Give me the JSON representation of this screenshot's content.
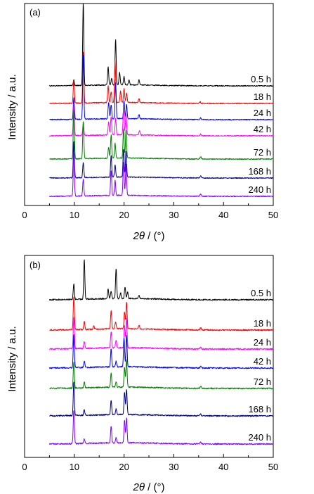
{
  "chart_data": [
    {
      "type": "line",
      "panel_label": "(a)",
      "xlabel_symbol": "2θ",
      "xlabel_unit": " / (°)",
      "ylabel": "Intensity / a.u.",
      "xlim": [
        0,
        50
      ],
      "x_ticks": [
        0,
        10,
        20,
        30,
        40,
        50
      ],
      "y_ticks_shown": false,
      "grid": false,
      "legend": "none",
      "series": [
        {
          "name": "0.5 h",
          "color": "#000000",
          "peaks": [
            [
              9.9,
              0.07
            ],
            [
              11.8,
              1.0
            ],
            [
              16.8,
              0.22
            ],
            [
              17.5,
              0.08
            ],
            [
              18.3,
              0.55
            ],
            [
              19.1,
              0.15
            ],
            [
              20.0,
              0.1
            ],
            [
              21.0,
              0.06
            ],
            [
              23.0,
              0.06
            ]
          ]
        },
        {
          "name": "18 h",
          "color": "#ff0000",
          "peaks": [
            [
              9.9,
              0.28
            ],
            [
              11.8,
              0.62
            ],
            [
              16.8,
              0.2
            ],
            [
              17.4,
              0.13
            ],
            [
              18.2,
              0.5
            ],
            [
              19.3,
              0.14
            ],
            [
              20.0,
              0.17
            ],
            [
              20.5,
              0.12
            ],
            [
              23.0,
              0.05
            ],
            [
              35.3,
              0.02
            ]
          ]
        },
        {
          "name": "24 h",
          "color": "#0000ff",
          "peaks": [
            [
              9.9,
              0.26
            ],
            [
              11.8,
              0.78
            ],
            [
              16.9,
              0.2
            ],
            [
              17.4,
              0.17
            ],
            [
              18.3,
              0.44
            ],
            [
              20.0,
              0.22
            ],
            [
              20.5,
              0.17
            ],
            [
              23.0,
              0.05
            ],
            [
              35.4,
              0.02
            ]
          ]
        },
        {
          "name": "42 h",
          "color": "#ff00ff",
          "peaks": [
            [
              9.9,
              0.38
            ],
            [
              11.8,
              0.14
            ],
            [
              16.9,
              0.16
            ],
            [
              17.4,
              0.22
            ],
            [
              18.3,
              0.2
            ],
            [
              19.9,
              0.3
            ],
            [
              20.4,
              0.26
            ],
            [
              23.1,
              0.05
            ],
            [
              35.4,
              0.02
            ]
          ]
        },
        {
          "name": "72 h",
          "color": "#008000",
          "peaks": [
            [
              9.9,
              0.6
            ],
            [
              11.8,
              0.45
            ],
            [
              16.9,
              0.13
            ],
            [
              17.4,
              0.28
            ],
            [
              18.2,
              0.18
            ],
            [
              19.9,
              0.35
            ],
            [
              20.4,
              0.34
            ],
            [
              35.4,
              0.03
            ]
          ]
        },
        {
          "name": "168 h",
          "color": "#000080",
          "peaks": [
            [
              9.9,
              0.44
            ],
            [
              11.8,
              0.18
            ],
            [
              17.4,
              0.26
            ],
            [
              18.2,
              0.15
            ],
            [
              19.9,
              0.34
            ],
            [
              20.4,
              0.32
            ],
            [
              35.4,
              0.03
            ]
          ]
        },
        {
          "name": "240 h",
          "color": "#8000ff",
          "peaks": [
            [
              9.9,
              0.52
            ],
            [
              11.8,
              0.2
            ],
            [
              17.4,
              0.3
            ],
            [
              18.2,
              0.18
            ],
            [
              19.9,
              0.4
            ],
            [
              20.4,
              0.38
            ],
            [
              35.4,
              0.03
            ]
          ]
        }
      ]
    },
    {
      "type": "line",
      "panel_label": "(b)",
      "xlabel_symbol": "2θ",
      "xlabel_unit": " / (°)",
      "ylabel": "Intensity / a.u.",
      "xlim": [
        0,
        50
      ],
      "x_ticks": [
        0,
        10,
        20,
        30,
        40,
        50
      ],
      "y_ticks_shown": false,
      "grid": false,
      "legend": "none",
      "series": [
        {
          "name": "0.5 h",
          "color": "#000000",
          "peaks": [
            [
              9.9,
              0.14
            ],
            [
              12.0,
              0.36
            ],
            [
              16.8,
              0.09
            ],
            [
              17.4,
              0.07
            ],
            [
              18.4,
              0.27
            ],
            [
              19.3,
              0.05
            ],
            [
              20.2,
              0.1
            ],
            [
              20.7,
              0.06
            ],
            [
              23.0,
              0.03
            ]
          ]
        },
        {
          "name": "18 h",
          "color": "#ff0000",
          "peaks": [
            [
              9.9,
              0.3
            ],
            [
              12.0,
              0.07
            ],
            [
              13.9,
              0.03
            ],
            [
              17.4,
              0.16
            ],
            [
              18.3,
              0.06
            ],
            [
              20.1,
              0.15
            ],
            [
              20.5,
              0.24
            ],
            [
              23.0,
              0.03
            ],
            [
              35.4,
              0.02
            ]
          ]
        },
        {
          "name": "24 h",
          "color": "#ff00ff",
          "peaks": [
            [
              9.9,
              0.28
            ],
            [
              12.0,
              0.06
            ],
            [
              17.4,
              0.14
            ],
            [
              18.4,
              0.07
            ],
            [
              20.1,
              0.2
            ],
            [
              20.5,
              0.26
            ],
            [
              35.4,
              0.02
            ]
          ]
        },
        {
          "name": "42 h",
          "color": "#0000ff",
          "peaks": [
            [
              9.9,
              0.3
            ],
            [
              12.0,
              0.06
            ],
            [
              17.4,
              0.16
            ],
            [
              18.4,
              0.05
            ],
            [
              20.0,
              0.25
            ],
            [
              20.5,
              0.28
            ],
            [
              35.4,
              0.02
            ]
          ]
        },
        {
          "name": "72 h",
          "color": "#008000",
          "peaks": [
            [
              9.9,
              0.24
            ],
            [
              12.0,
              0.05
            ],
            [
              17.4,
              0.13
            ],
            [
              18.4,
              0.05
            ],
            [
              20.1,
              0.18
            ],
            [
              20.5,
              0.25
            ],
            [
              35.4,
              0.02
            ]
          ]
        },
        {
          "name": "168 h",
          "color": "#000080",
          "peaks": [
            [
              9.9,
              0.3
            ],
            [
              12.0,
              0.05
            ],
            [
              17.4,
              0.13
            ],
            [
              18.4,
              0.05
            ],
            [
              20.1,
              0.2
            ],
            [
              20.5,
              0.23
            ],
            [
              35.4,
              0.02
            ]
          ]
        },
        {
          "name": "240 h",
          "color": "#8000ff",
          "peaks": [
            [
              9.9,
              0.3
            ],
            [
              12.0,
              0.04
            ],
            [
              17.4,
              0.15
            ],
            [
              18.4,
              0.05
            ],
            [
              20.1,
              0.2
            ],
            [
              20.5,
              0.22
            ],
            [
              35.4,
              0.02
            ]
          ]
        }
      ]
    }
  ]
}
